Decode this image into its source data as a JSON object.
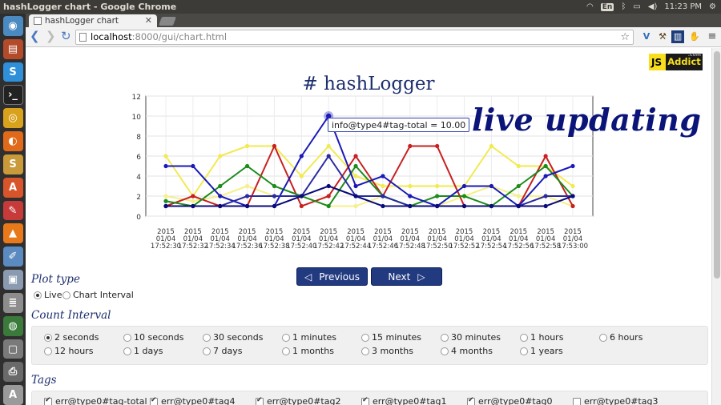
{
  "window": {
    "title": "hashLogger chart - Google Chrome"
  },
  "tray": {
    "lang": "En",
    "time": "11:23 PM"
  },
  "tab": {
    "title": "hashLogger chart"
  },
  "address": {
    "host": "localhost",
    "path": ":8000/gui/chart.html"
  },
  "page": {
    "title": "# hashLogger",
    "overlay_text": "live updating"
  },
  "logo": {
    "js": "JS",
    "name": "Addict",
    "tld": ".com"
  },
  "tooltip": "info@type4#tag-total = 10.00",
  "nav": {
    "previous": "Previous",
    "next": "Next"
  },
  "plot_type": {
    "title": "Plot type",
    "options": [
      "Live",
      "Chart Interval"
    ],
    "selected": "Live"
  },
  "count_interval": {
    "title": "Count Interval",
    "options": [
      "2 seconds",
      "10 seconds",
      "30 seconds",
      "1 minutes",
      "15 minutes",
      "30 minutes",
      "1 hours",
      "6 hours",
      "12 hours",
      "1 days",
      "7 days",
      "1 months",
      "3 months",
      "4 months",
      "1 years"
    ],
    "selected": "2 seconds"
  },
  "tags": {
    "title": "Tags",
    "items": [
      {
        "label": "err@type0#tag-total",
        "checked": true
      },
      {
        "label": "err@type0#tag4",
        "checked": true
      },
      {
        "label": "err@type0#tag2",
        "checked": true
      },
      {
        "label": "err@type0#tag1",
        "checked": true
      },
      {
        "label": "err@type0#tag0",
        "checked": true
      },
      {
        "label": "err@type0#tag3",
        "checked": false
      }
    ]
  },
  "chart_data": {
    "type": "line",
    "ylim": [
      0,
      12
    ],
    "yticks": [
      0,
      2,
      4,
      6,
      8,
      10,
      12
    ],
    "x": [
      "2015 01/04 17:52:30",
      "2015 01/04 17:52:32",
      "2015 01/04 17:52:34",
      "2015 01/04 17:52:36",
      "2015 01/04 17:52:38",
      "2015 01/04 17:52:40",
      "2015 01/04 17:52:42",
      "2015 01/04 17:52:44",
      "2015 01/04 17:52:46",
      "2015 01/04 17:52:48",
      "2015 01/04 17:52:50",
      "2015 01/04 17:52:52",
      "2015 01/04 17:52:54",
      "2015 01/04 17:52:56",
      "2015 01/04 17:52:58",
      "2015 01/04 17:53:00"
    ],
    "grid": true,
    "series": [
      {
        "color": "#f2ea50",
        "values": [
          6,
          2,
          6,
          7,
          7,
          4,
          7,
          4,
          3,
          3,
          3,
          3,
          7,
          5,
          5,
          3
        ]
      },
      {
        "color": "#f5f08a",
        "values": [
          2,
          1.5,
          2,
          3,
          2,
          2,
          1,
          1,
          2,
          1,
          1,
          2,
          3,
          2,
          2,
          1
        ]
      },
      {
        "color": "#c82020",
        "values": [
          1,
          2,
          1,
          1,
          7,
          1,
          2,
          6,
          2,
          7,
          7,
          1,
          1,
          1,
          6,
          1
        ]
      },
      {
        "color": "#1c8c1c",
        "values": [
          1.5,
          1,
          3,
          5,
          3,
          2,
          1,
          5,
          2,
          1,
          2,
          2,
          1,
          3,
          5,
          2
        ]
      },
      {
        "color": "#1a1ab8",
        "values": [
          5,
          5,
          2,
          1,
          1,
          6,
          10,
          3,
          4,
          2,
          1,
          3,
          3,
          1,
          4,
          5
        ]
      },
      {
        "color": "#2a2aa0",
        "values": [
          1,
          1,
          1,
          2,
          2,
          2,
          6,
          2,
          2,
          1,
          1,
          1,
          1,
          1,
          2,
          2
        ]
      },
      {
        "color": "#0a0a7a",
        "values": [
          1,
          1,
          1,
          1,
          1,
          2,
          3,
          2,
          1,
          1,
          1,
          1,
          1,
          1,
          1,
          2
        ]
      }
    ]
  }
}
